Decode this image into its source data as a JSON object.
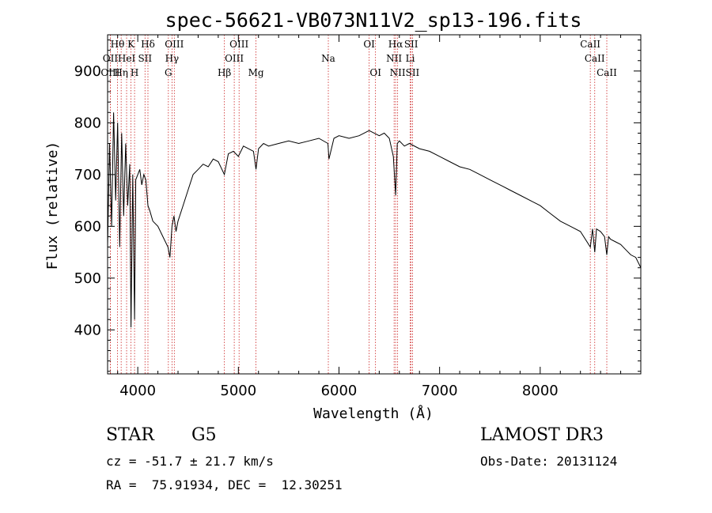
{
  "chart_data": {
    "type": "line",
    "title": "spec-56621-VB073N11V2_sp13-196.fits",
    "xlabel": "Wavelength (Å)",
    "ylabel": "Flux (relative)",
    "xlim": [
      3700,
      9000
    ],
    "ylim": [
      315,
      970
    ],
    "xticks": [
      4000,
      5000,
      6000,
      7000,
      8000
    ],
    "yticks": [
      400,
      500,
      600,
      700,
      800,
      900
    ],
    "series": [
      {
        "name": "flux",
        "x": [
          3700,
          3720,
          3740,
          3760,
          3780,
          3800,
          3820,
          3840,
          3860,
          3880,
          3900,
          3920,
          3933,
          3950,
          3968,
          3980,
          4000,
          4020,
          4040,
          4060,
          4080,
          4101,
          4120,
          4150,
          4200,
          4250,
          4300,
          4320,
          4340,
          4360,
          4380,
          4400,
          4450,
          4500,
          4550,
          4600,
          4650,
          4700,
          4750,
          4800,
          4861,
          4900,
          4950,
          5000,
          5050,
          5100,
          5150,
          5175,
          5200,
          5250,
          5300,
          5400,
          5500,
          5600,
          5700,
          5800,
          5890,
          5900,
          5950,
          6000,
          6100,
          6200,
          6300,
          6350,
          6400,
          6450,
          6500,
          6540,
          6563,
          6580,
          6600,
          6650,
          6700,
          6800,
          6900,
          7000,
          7100,
          7200,
          7300,
          7400,
          7500,
          7600,
          7700,
          7800,
          7900,
          8000,
          8100,
          8200,
          8300,
          8400,
          8498,
          8520,
          8542,
          8560,
          8600,
          8640,
          8662,
          8680,
          8700,
          8750,
          8800,
          8850,
          8900,
          8950,
          9000
        ],
        "values": [
          560,
          760,
          600,
          820,
          650,
          800,
          560,
          780,
          620,
          760,
          640,
          720,
          405,
          700,
          420,
          690,
          700,
          710,
          680,
          700,
          690,
          640,
          630,
          610,
          600,
          580,
          560,
          540,
          600,
          620,
          590,
          610,
          640,
          670,
          700,
          710,
          720,
          715,
          730,
          725,
          700,
          740,
          745,
          735,
          755,
          750,
          745,
          710,
          750,
          760,
          755,
          760,
          765,
          760,
          765,
          770,
          760,
          730,
          770,
          775,
          770,
          775,
          785,
          780,
          775,
          780,
          770,
          735,
          660,
          760,
          765,
          755,
          760,
          750,
          745,
          735,
          725,
          715,
          710,
          700,
          690,
          680,
          670,
          660,
          650,
          640,
          625,
          610,
          600,
          590,
          560,
          595,
          550,
          595,
          590,
          580,
          545,
          580,
          575,
          570,
          565,
          555,
          545,
          540,
          520
        ]
      }
    ],
    "line_labels": [
      {
        "label": "Hθ",
        "wavelength": 3798,
        "row": 0
      },
      {
        "label": "OII",
        "wavelength": 3727,
        "row": 1
      },
      {
        "label": "OIII",
        "wavelength": 3727,
        "row": 2
      },
      {
        "label": "K",
        "wavelength": 3933,
        "row": 0
      },
      {
        "label": "HeI",
        "wavelength": 3889,
        "row": 1
      },
      {
        "label": "Hη",
        "wavelength": 3835,
        "row": 2
      },
      {
        "label": "Hδ",
        "wavelength": 4101,
        "row": 0
      },
      {
        "label": "SII",
        "wavelength": 4072,
        "row": 1
      },
      {
        "label": "H",
        "wavelength": 3968,
        "row": 2
      },
      {
        "label": "OIII",
        "wavelength": 4363,
        "row": 0
      },
      {
        "label": "Hγ",
        "wavelength": 4340,
        "row": 1
      },
      {
        "label": "G",
        "wavelength": 4304,
        "row": 2
      },
      {
        "label": "OIII",
        "wavelength": 5007,
        "row": 0
      },
      {
        "label": "OIII",
        "wavelength": 4959,
        "row": 1
      },
      {
        "label": "Hβ",
        "wavelength": 4861,
        "row": 2
      },
      {
        "label": "Mg",
        "wavelength": 5175,
        "row": 2
      },
      {
        "label": "Na",
        "wavelength": 5894,
        "row": 1
      },
      {
        "label": "OI",
        "wavelength": 6300,
        "row": 0
      },
      {
        "label": "OI",
        "wavelength": 6363,
        "row": 2
      },
      {
        "label": "Hα",
        "wavelength": 6563,
        "row": 0
      },
      {
        "label": "NII",
        "wavelength": 6548,
        "row": 1
      },
      {
        "label": "NII",
        "wavelength": 6583,
        "row": 2
      },
      {
        "label": "SII",
        "wavelength": 6717,
        "row": 0
      },
      {
        "label": "Li",
        "wavelength": 6708,
        "row": 1
      },
      {
        "label": "SII",
        "wavelength": 6731,
        "row": 2
      },
      {
        "label": "CaII",
        "wavelength": 8498,
        "row": 0
      },
      {
        "label": "CaII",
        "wavelength": 8542,
        "row": 1
      },
      {
        "label": "CaII",
        "wavelength": 8662,
        "row": 2
      }
    ],
    "line_color": "#cc2222",
    "spectrum_color": "#000000"
  },
  "info": {
    "class_label": "STAR",
    "subclass": "G5",
    "survey": "LAMOST DR3",
    "cz": "cz = -51.7 ± 21.7 km/s",
    "obs_date": "Obs-Date: 20131124",
    "coords": "RA =  75.91934, DEC =  12.30251"
  }
}
